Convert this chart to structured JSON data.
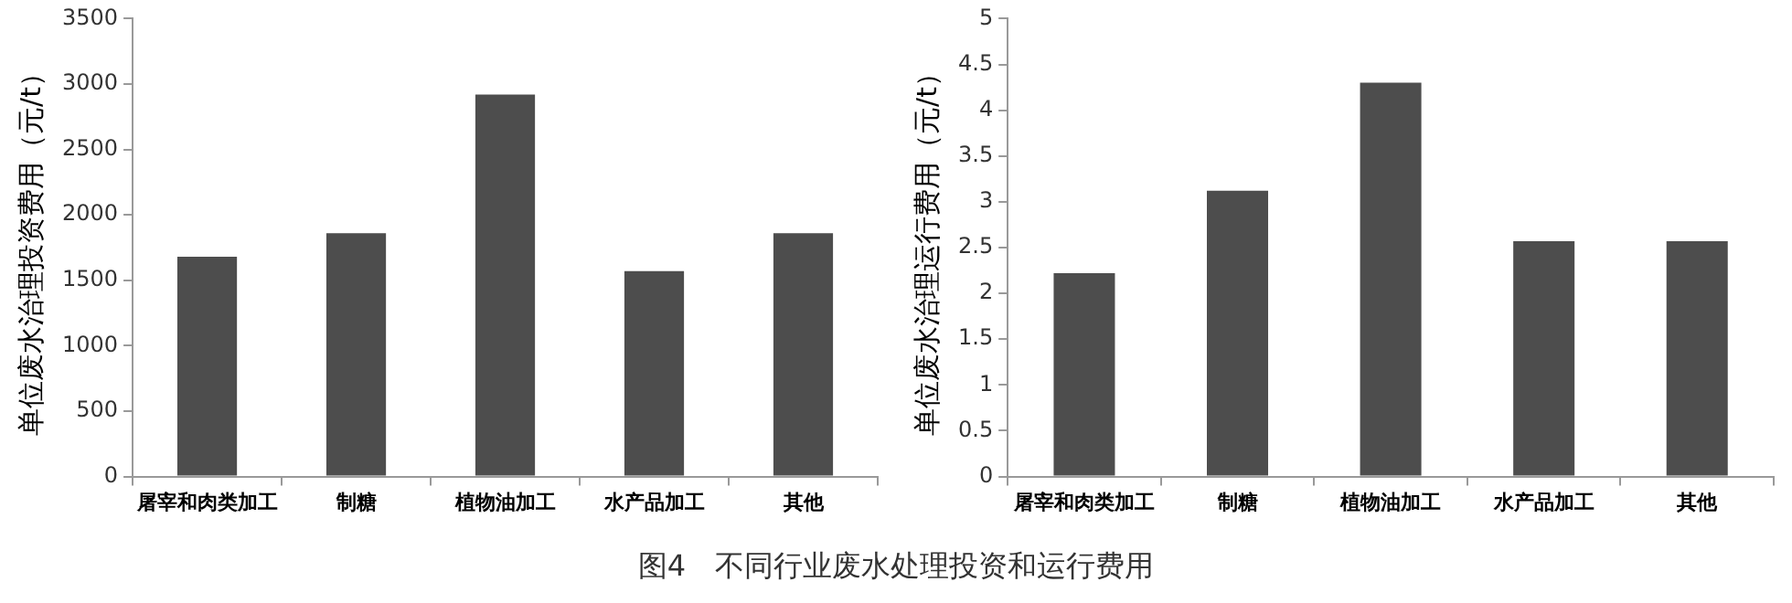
{
  "chart_data": [
    {
      "type": "bar",
      "ylabel": "单位废水治理投资费用（元/t）",
      "categories": [
        "屠宰和肉类加工",
        "制糖",
        "植物油加工",
        "水产品加工",
        "其他"
      ],
      "values": [
        1680,
        1860,
        2920,
        1570,
        1860
      ],
      "color": "#4d4d4d",
      "ylim": [
        0,
        3500
      ],
      "yticks": [
        0,
        500,
        1000,
        1500,
        2000,
        2500,
        3000,
        3500
      ],
      "grid": false,
      "legend": false
    },
    {
      "type": "bar",
      "ylabel": "单位废水治理运行费用（元/t）",
      "categories": [
        "屠宰和肉类加工",
        "制糖",
        "植物油加工",
        "水产品加工",
        "其他"
      ],
      "values": [
        2.22,
        3.12,
        4.3,
        2.57,
        2.57
      ],
      "color": "#4d4d4d",
      "ylim": [
        0,
        5
      ],
      "yticks": [
        0,
        0.5,
        1,
        1.5,
        2,
        2.5,
        3,
        3.5,
        4,
        4.5,
        5
      ],
      "grid": false,
      "legend": false
    },
    {
      "type": "other",
      "title": "图4　不同行业废水处理投资和运行费用"
    }
  ]
}
